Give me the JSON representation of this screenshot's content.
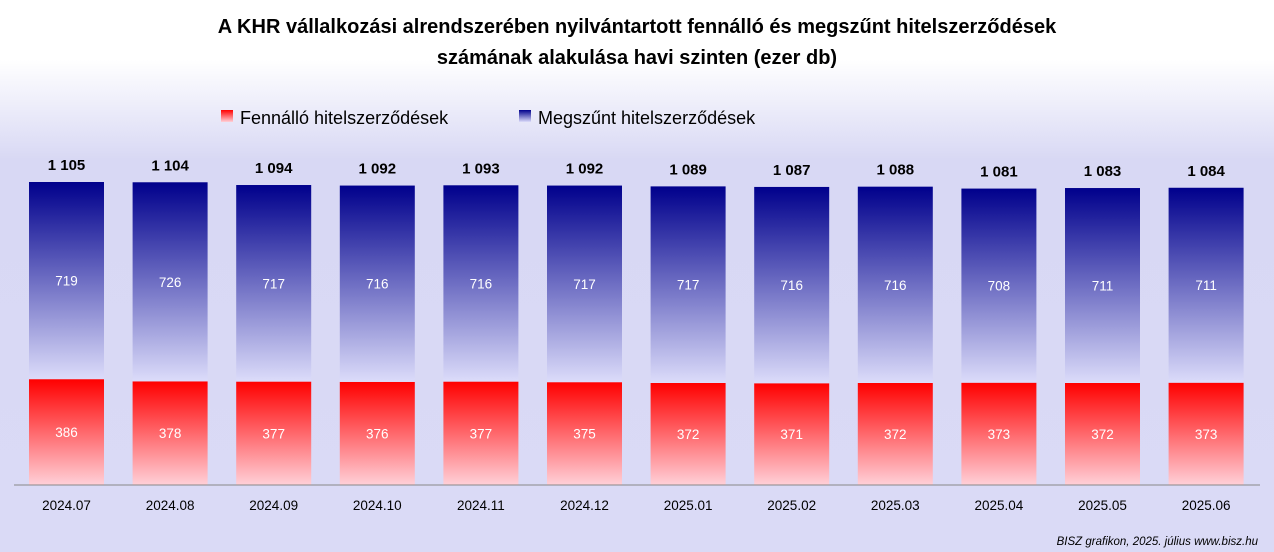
{
  "colors": {
    "fennallo_top": "#ff0000",
    "fennallo_bottom": "#ffd0d8",
    "megszunt_top": "#00008c",
    "megszunt_bottom": "#dcdcfa"
  },
  "chart_data": {
    "type": "bar",
    "stacked": true,
    "title_line1": "A KHR vállalkozási alrendszerében nyilvántartott fennálló és megszűnt hitelszerződések",
    "title_line2": "számának alakulása havi szinten (ezer db)",
    "categories": [
      "2024.07",
      "2024.08",
      "2024.09",
      "2024.10",
      "2024.11",
      "2024.12",
      "2025.01",
      "2025.02",
      "2025.03",
      "2025.04",
      "2025.05",
      "2025.06"
    ],
    "series": [
      {
        "name": "Fennálló hitelszerződések",
        "values": [
          386,
          378,
          377,
          376,
          377,
          375,
          372,
          371,
          372,
          373,
          372,
          373
        ]
      },
      {
        "name": "Megszűnt hitelszerződések",
        "values": [
          719,
          726,
          717,
          716,
          716,
          717,
          717,
          716,
          716,
          708,
          711,
          711
        ]
      }
    ],
    "totals": [
      "1 105",
      "1 104",
      "1 094",
      "1 092",
      "1 093",
      "1 092",
      "1 089",
      "1 087",
      "1 088",
      "1 081",
      "1 083",
      "1 084"
    ],
    "ylim": [
      0,
      1105
    ],
    "legend_position": "top-center",
    "grid": false
  },
  "credit": "BISZ grafikon, 2025. július www.bisz.hu"
}
